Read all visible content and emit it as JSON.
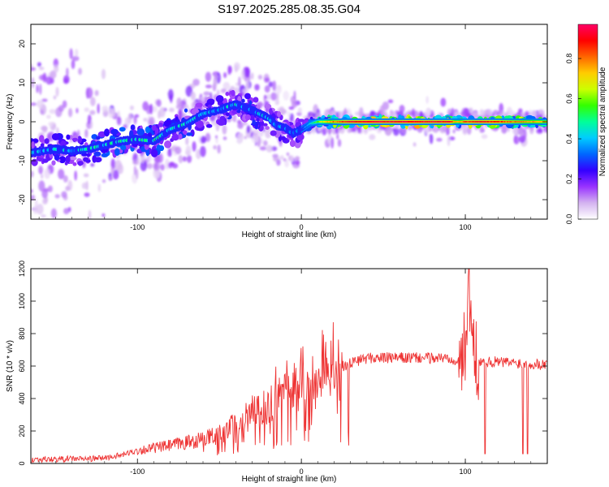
{
  "title": "S197.2025.285.08.35.G04",
  "chart_data": [
    {
      "type": "heatmap",
      "xlabel": "Height of straight line (km)",
      "ylabel": "Frequency (Hz)",
      "xlim": [
        -165,
        150
      ],
      "ylim": [
        -25,
        25
      ],
      "xticks": [
        -100,
        0,
        100
      ],
      "yticks": [
        20,
        10,
        0,
        -10,
        -20
      ],
      "colorbar": {
        "label": "Normalized spectral amplitude",
        "range": [
          0.0,
          0.97
        ],
        "ticks": [
          0.0,
          0.2,
          0.4,
          0.6,
          0.8
        ],
        "colormap": [
          "#ffffff",
          "#d4b3f0",
          "#9933ff",
          "#3300ff",
          "#0066ff",
          "#00ccff",
          "#00ff99",
          "#33ff00",
          "#ccff00",
          "#ffcc00",
          "#ff6600",
          "#ff0000",
          "#ff0066"
        ]
      },
      "ridge": {
        "x": [
          -165,
          -150,
          -140,
          -130,
          -120,
          -110,
          -100,
          -90,
          -80,
          -70,
          -60,
          -50,
          -40,
          -30,
          -20,
          -15,
          -10,
          -5,
          0,
          5,
          10,
          20,
          30,
          50,
          70,
          90,
          95,
          100,
          110,
          120,
          130,
          140,
          150
        ],
        "y": [
          -8,
          -7,
          -7.5,
          -7,
          -6,
          -5,
          -4.5,
          -5,
          -2,
          -0.5,
          2,
          3,
          4.5,
          3,
          1,
          -1,
          -1.5,
          -3,
          -2,
          -0.5,
          0,
          0,
          0,
          0,
          0,
          0,
          0,
          0,
          0,
          0,
          0,
          0,
          0
        ],
        "amplitude": [
          0.3,
          0.35,
          0.3,
          0.35,
          0.38,
          0.4,
          0.38,
          0.4,
          0.35,
          0.35,
          0.3,
          0.3,
          0.35,
          0.35,
          0.3,
          0.3,
          0.3,
          0.25,
          0.3,
          0.45,
          0.6,
          0.8,
          0.9,
          0.92,
          0.92,
          0.9,
          0.7,
          0.85,
          0.9,
          0.85,
          0.8,
          0.75,
          0.7
        ]
      }
    },
    {
      "type": "line",
      "xlabel": "Height of straight line (km)",
      "ylabel": "SNR (10 * v/v)",
      "xlim": [
        -165,
        150
      ],
      "ylim": [
        0,
        1200
      ],
      "xticks": [
        -100,
        0,
        100
      ],
      "yticks": [
        0,
        200,
        400,
        600,
        800,
        1000,
        1200
      ],
      "color": "#ee3333",
      "series": [
        {
          "x": [
            -165,
            -150,
            -140,
            -130,
            -120,
            -110,
            -100,
            -90,
            -80,
            -70,
            -60,
            -50,
            -40,
            -30,
            -20,
            -10,
            0,
            10,
            20,
            30,
            40,
            50,
            60,
            70,
            80,
            90,
            95,
            100,
            102,
            105,
            110,
            120,
            130,
            140,
            150
          ],
          "y": [
            25,
            25,
            30,
            28,
            35,
            50,
            80,
            95,
            110,
            130,
            150,
            180,
            240,
            300,
            360,
            420,
            460,
            520,
            580,
            620,
            650,
            650,
            650,
            650,
            650,
            650,
            640,
            700,
            1190,
            640,
            630,
            625,
            620,
            615,
            610
          ]
        }
      ]
    }
  ]
}
